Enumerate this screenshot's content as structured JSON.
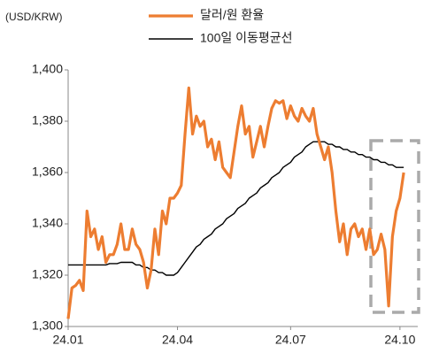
{
  "chart_data": {
    "type": "line",
    "y_label": "(USD/KRW)",
    "categories": [
      "24.01",
      null,
      null,
      null,
      null,
      null,
      null,
      null,
      null,
      null,
      null,
      null,
      null,
      null,
      null,
      null,
      null,
      null,
      null,
      null,
      null,
      null,
      null,
      null,
      null,
      null,
      null,
      null,
      null,
      "24.04",
      null,
      null,
      null,
      null,
      null,
      null,
      null,
      null,
      null,
      null,
      null,
      null,
      null,
      null,
      null,
      null,
      null,
      null,
      null,
      null,
      null,
      null,
      null,
      null,
      null,
      null,
      null,
      null,
      null,
      "24.07",
      null,
      null,
      null,
      null,
      null,
      null,
      null,
      null,
      null,
      null,
      null,
      null,
      null,
      null,
      null,
      null,
      null,
      null,
      null,
      null,
      null,
      null,
      null,
      null,
      null,
      null,
      null,
      null,
      "24.10",
      null
    ],
    "series": [
      {
        "name": "달러/원 환율",
        "color": "#ed7d31",
        "width": 3.2,
        "values": [
          1303,
          1315,
          1316,
          1318,
          1314,
          1345,
          1335,
          1338,
          1330,
          1335,
          1325,
          1328,
          1328,
          1332,
          1340,
          1330,
          1330,
          1338,
          1332,
          1330,
          1325,
          1315,
          1322,
          1338,
          1328,
          1345,
          1340,
          1350,
          1350,
          1352,
          1355,
          1375,
          1393,
          1375,
          1382,
          1378,
          1380,
          1370,
          1373,
          1365,
          1372,
          1362,
          1360,
          1358,
          1368,
          1378,
          1386,
          1375,
          1378,
          1366,
          1372,
          1378,
          1370,
          1378,
          1385,
          1388,
          1387,
          1388,
          1381,
          1386,
          1382,
          1380,
          1385,
          1382,
          1380,
          1385,
          1375,
          1370,
          1365,
          1370,
          1360,
          1345,
          1333,
          1340,
          1328,
          1338,
          1340,
          1335,
          1338,
          1330,
          1338,
          1328,
          1330,
          1336,
          1330,
          1308,
          1335,
          1345,
          1350,
          1360
        ]
      },
      {
        "name": "100일 이동평균선",
        "color": "#000000",
        "width": 1.4,
        "values": [
          1324,
          1324,
          1324,
          1324,
          1324,
          1324,
          1324,
          1324,
          1324,
          1324,
          1324,
          1324.5,
          1324.5,
          1324.5,
          1325,
          1325,
          1325,
          1325,
          1324,
          1324,
          1323,
          1323,
          1322,
          1322,
          1321,
          1321,
          1320,
          1320,
          1320,
          1321,
          1323,
          1325,
          1327,
          1329,
          1331,
          1332,
          1334,
          1335,
          1336,
          1338,
          1339,
          1340,
          1342,
          1343,
          1344,
          1346,
          1347,
          1348,
          1350,
          1351,
          1352,
          1354,
          1355,
          1356,
          1358,
          1359,
          1360,
          1362,
          1363,
          1364,
          1366,
          1367,
          1368,
          1370,
          1371,
          1372,
          1372,
          1372,
          1372,
          1371,
          1371,
          1370,
          1370,
          1369,
          1369,
          1368,
          1368,
          1367,
          1367,
          1366,
          1366,
          1365,
          1365,
          1364,
          1364,
          1363,
          1363,
          1362,
          1362,
          1362
        ]
      }
    ],
    "ylim": [
      1300,
      1400
    ],
    "yticks": [
      {
        "value": 1300,
        "label": "1,300"
      },
      {
        "value": 1320,
        "label": "1,320"
      },
      {
        "value": 1340,
        "label": "1,340"
      },
      {
        "value": 1360,
        "label": "1,360"
      },
      {
        "value": 1380,
        "label": "1,380"
      },
      {
        "value": 1400,
        "label": "1,400"
      }
    ],
    "grid": false
  }
}
